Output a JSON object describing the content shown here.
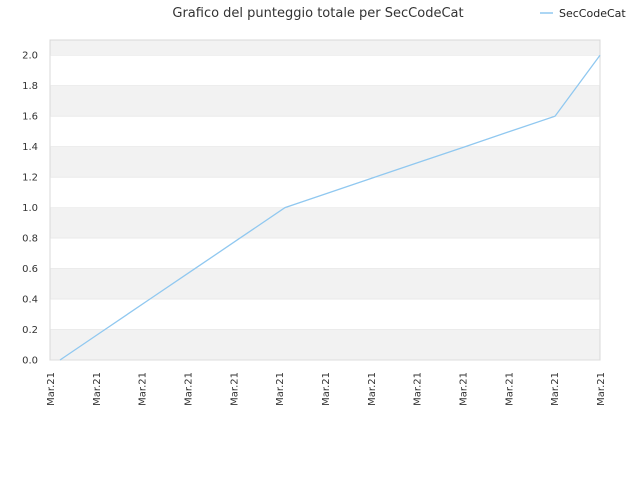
{
  "chart_data": {
    "type": "line",
    "title": "Grafico del punteggio totale per SecCodeCat",
    "xlabel": "",
    "ylabel": "",
    "x": [
      "Mar.21",
      "Mar.21",
      "Mar.21",
      "Mar.21",
      "Mar.21",
      "Mar.21",
      "Mar.21",
      "Mar.21",
      "Mar.21",
      "Mar.21",
      "Mar.21",
      "Mar.21",
      "Mar.21"
    ],
    "x_tick_labels": [
      "Mar.21",
      "Mar.21",
      "Mar.21",
      "Mar.21",
      "Mar.21",
      "Mar.21",
      "Mar.21",
      "Mar.21",
      "Mar.21",
      "Mar.21",
      "Mar.21",
      "Mar.21",
      "Mar.21"
    ],
    "ylim": [
      0,
      2.1
    ],
    "y_ticks": [
      "0.0",
      "0.2",
      "0.4",
      "0.6",
      "0.8",
      "1.0",
      "1.2",
      "1.4",
      "1.6",
      "1.8",
      "2.0"
    ],
    "series": [
      {
        "name": "SecCodeCat",
        "color": "#90c8f0",
        "values": [
          0.0,
          0.2,
          0.4,
          0.6,
          0.8,
          1.0,
          1.1,
          1.2,
          1.3,
          1.4,
          1.5,
          1.6,
          2.0
        ]
      }
    ],
    "legend_position": "top-right",
    "grid": true,
    "band_colors": [
      "#f2f2f2",
      "#ffffff"
    ]
  }
}
